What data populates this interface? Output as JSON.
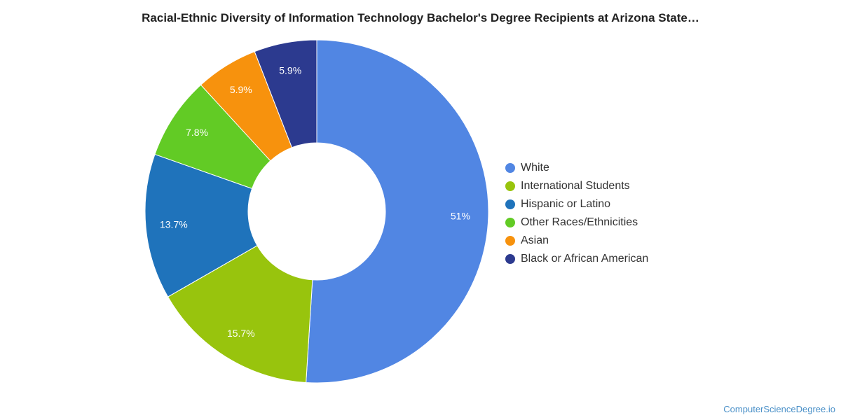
{
  "title": "Racial-Ethnic Diversity of Information Technology Bachelor's Degree Recipients at Arizona State…",
  "footer": "ComputerScienceDegree.io",
  "chart_data": {
    "type": "pie",
    "donut": true,
    "legend_position": "right",
    "slices": [
      {
        "label": "White",
        "value": 51,
        "display": "51%",
        "color": "#5186e3"
      },
      {
        "label": "International Students",
        "value": 15.7,
        "display": "15.7%",
        "color": "#98c40d"
      },
      {
        "label": "Hispanic or Latino",
        "value": 13.7,
        "display": "13.7%",
        "color": "#1f73bb"
      },
      {
        "label": "Other Races/Ethnicities",
        "value": 7.8,
        "display": "7.8%",
        "color": "#62cb25"
      },
      {
        "label": "Asian",
        "value": 5.9,
        "display": "5.9%",
        "color": "#f7920d"
      },
      {
        "label": "Black or African American",
        "value": 5.9,
        "display": "5.9%",
        "color": "#2c3a8f"
      }
    ]
  }
}
